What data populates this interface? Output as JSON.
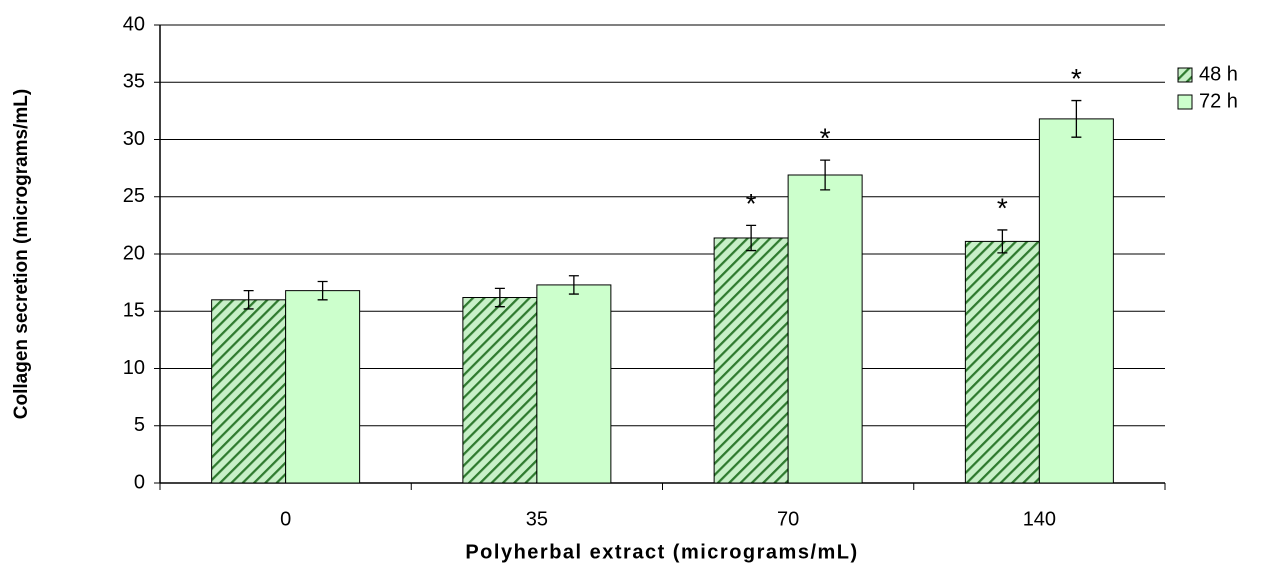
{
  "chart_data": {
    "type": "bar",
    "ylabel": "Collagen secretion (micrograms/mL)",
    "xlabel": "Polyherbal extract (micrograms/mL)",
    "categories": [
      "0",
      "35",
      "70",
      "140"
    ],
    "series": [
      {
        "name": "48 h",
        "color": "#2f7a2f",
        "fill": "#c8f0c8",
        "hatch": true,
        "values": [
          16,
          16.2,
          21.4,
          21.1
        ],
        "errors": [
          0.8,
          0.8,
          1.1,
          1.0
        ],
        "annotations": [
          null,
          null,
          "*",
          "*"
        ]
      },
      {
        "name": "72 h",
        "color": "#2f7a2f",
        "fill": "#ccffcc",
        "hatch": false,
        "values": [
          16.8,
          17.3,
          26.9,
          31.8
        ],
        "errors": [
          0.8,
          0.8,
          1.3,
          1.6
        ],
        "annotations": [
          null,
          null,
          "*",
          "*"
        ]
      }
    ],
    "ylim": [
      0,
      40
    ],
    "yticks": [
      0,
      5,
      10,
      15,
      20,
      25,
      30,
      35,
      40
    ],
    "grid": true,
    "legend": "right"
  }
}
